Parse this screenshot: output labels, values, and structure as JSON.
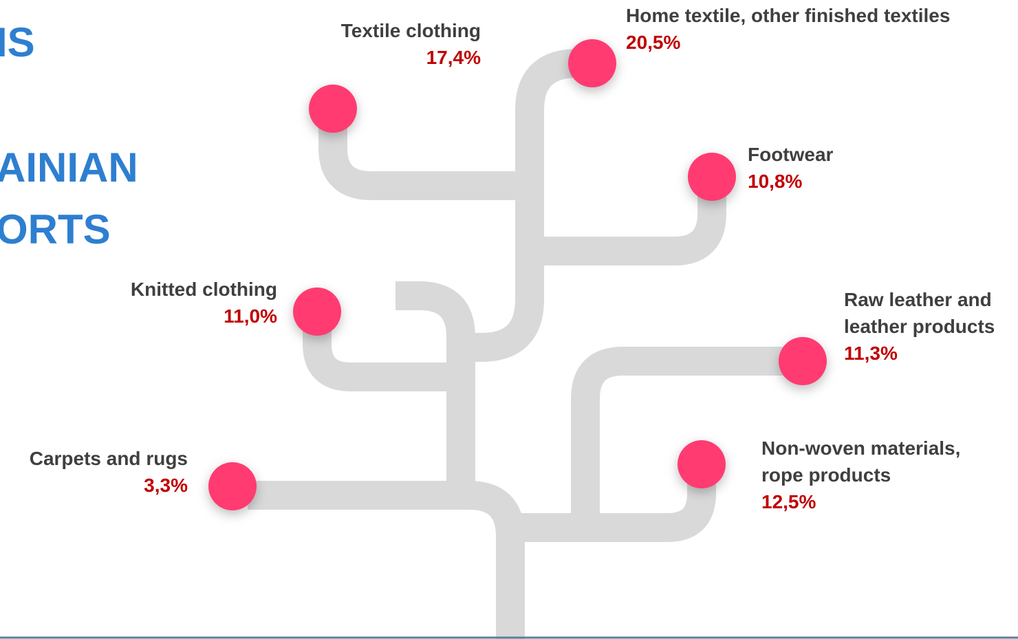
{
  "title_lines": [
    "IS",
    "AINIAN",
    "ORTS"
  ],
  "branches": [
    {
      "label": [
        "Textile clothing"
      ],
      "share": "17,4%"
    },
    {
      "label": [
        "Home textile, other finished textiles"
      ],
      "share": "20,5%"
    },
    {
      "label": [
        "Footwear"
      ],
      "share": "10,8%"
    },
    {
      "label": [
        "Knitted clothing"
      ],
      "share": "11,0%"
    },
    {
      "label": [
        "Raw leather and",
        "leather products"
      ],
      "share": "11,3%"
    },
    {
      "label": [
        "Non-woven materials,",
        "rope products"
      ],
      "share": "12,5%"
    },
    {
      "label": [
        "Carpets and rugs"
      ],
      "share": "3,3%"
    }
  ]
}
